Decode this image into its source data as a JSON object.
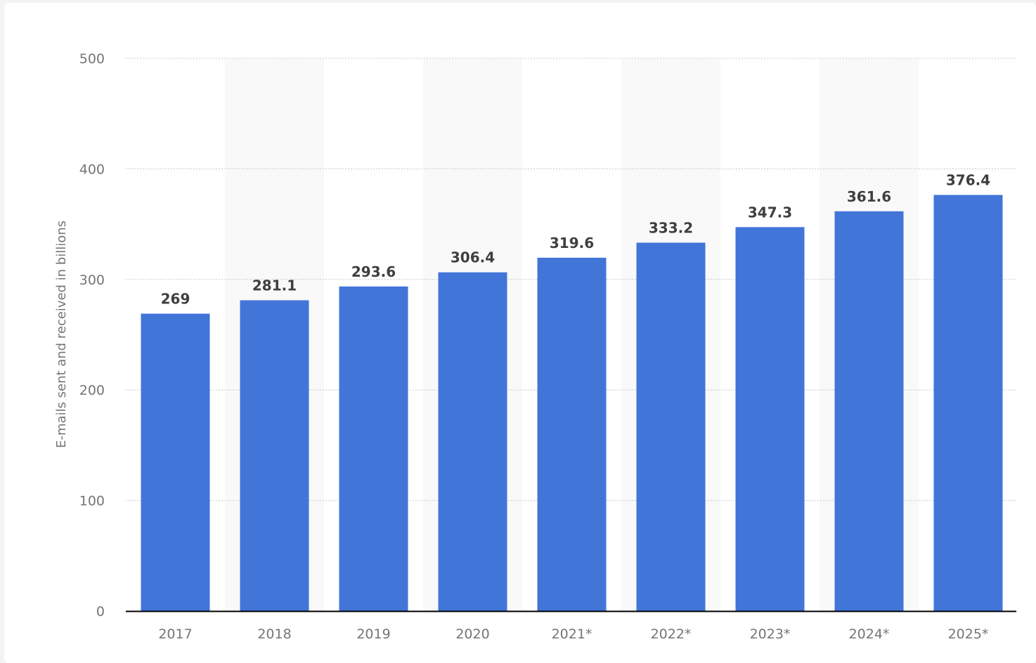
{
  "chart_data": {
    "type": "bar",
    "categories": [
      "2017",
      "2018",
      "2019",
      "2020",
      "2021*",
      "2022*",
      "2023*",
      "2024*",
      "2025*"
    ],
    "values": [
      269,
      281.1,
      293.6,
      306.4,
      319.6,
      333.2,
      347.3,
      361.6,
      376.4
    ],
    "value_labels": [
      "269",
      "281.1",
      "293.6",
      "306.4",
      "319.6",
      "333.2",
      "347.3",
      "361.6",
      "376.4"
    ],
    "ylabel": "E-mails sent and received in billions",
    "ylim": [
      0,
      500
    ],
    "yticks": [
      0,
      100,
      200,
      300,
      400,
      500
    ],
    "grid": true,
    "colors": {
      "bar": "#4275d8",
      "band": "#f9f9f9",
      "grid": "#c8c8c8",
      "axis": "#000000"
    }
  }
}
